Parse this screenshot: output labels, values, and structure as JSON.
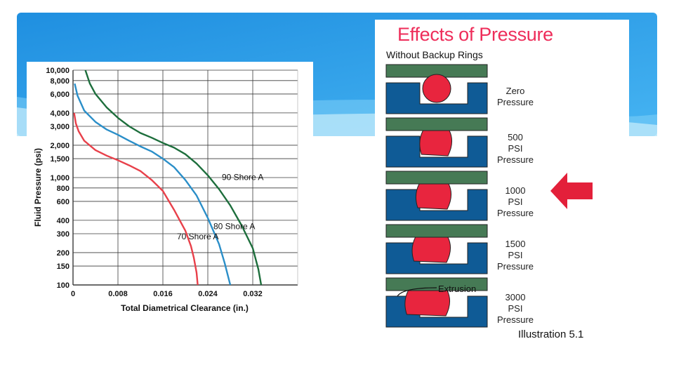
{
  "chart_data": {
    "type": "line",
    "title": "",
    "xlabel": "Total Diametrical Clearance (in.)",
    "ylabel": "Fluid Pressure (psi)",
    "x_scale": "linear",
    "y_scale": "log",
    "xlim": [
      0,
      0.04
    ],
    "ylim": [
      100,
      10000
    ],
    "x_ticks": [
      "0",
      "0.008",
      "0.016",
      "0.024",
      "0.032"
    ],
    "y_ticks": [
      "100",
      "150",
      "200",
      "300",
      "400",
      "600",
      "800",
      "1,000",
      "1,500",
      "2,000",
      "3,000",
      "4,000",
      "6,000",
      "8,000",
      "10,000"
    ],
    "y_tick_values": [
      100,
      150,
      200,
      300,
      400,
      600,
      800,
      1000,
      1500,
      2000,
      3000,
      4000,
      6000,
      8000,
      10000
    ],
    "grid": true,
    "series": [
      {
        "name": "70 Shore A",
        "color": "#e8404a",
        "x": [
          0.0002,
          0.0005,
          0.001,
          0.002,
          0.004,
          0.006,
          0.008,
          0.01,
          0.012,
          0.014,
          0.016,
          0.018,
          0.02,
          0.021,
          0.0215,
          0.022,
          0.0222
        ],
        "y": [
          4000,
          3200,
          2700,
          2200,
          1800,
          1600,
          1450,
          1300,
          1150,
          950,
          750,
          500,
          320,
          230,
          180,
          130,
          100
        ]
      },
      {
        "name": "80 Shore A",
        "color": "#2a8ec8",
        "x": [
          0.0003,
          0.0008,
          0.002,
          0.004,
          0.006,
          0.008,
          0.01,
          0.012,
          0.014,
          0.016,
          0.018,
          0.02,
          0.022,
          0.024,
          0.026,
          0.027,
          0.028
        ],
        "y": [
          7500,
          5800,
          4200,
          3300,
          2800,
          2500,
          2200,
          1950,
          1750,
          1500,
          1250,
          950,
          680,
          420,
          240,
          160,
          100
        ]
      },
      {
        "name": "90 Shore A",
        "color": "#1d6e3c",
        "x": [
          0.0022,
          0.003,
          0.004,
          0.006,
          0.008,
          0.01,
          0.012,
          0.014,
          0.016,
          0.018,
          0.02,
          0.022,
          0.024,
          0.026,
          0.028,
          0.03,
          0.032,
          0.033,
          0.0335
        ],
        "y": [
          10000,
          7500,
          6000,
          4500,
          3600,
          3000,
          2600,
          2350,
          2100,
          1900,
          1650,
          1350,
          1050,
          780,
          550,
          360,
          220,
          140,
          100
        ]
      }
    ]
  },
  "illustration": {
    "title": "Effects of Pressure",
    "subtitle": "Without Backup Rings",
    "extrusion_label": "Extrusion",
    "caption": "Illustration 5.1",
    "stages": [
      {
        "lines": [
          "Zero",
          "Pressure"
        ]
      },
      {
        "lines": [
          "500",
          "PSI",
          "Pressure"
        ]
      },
      {
        "lines": [
          "1000",
          "PSI",
          "Pressure"
        ]
      },
      {
        "lines": [
          "1500",
          "PSI",
          "Pressure"
        ]
      },
      {
        "lines": [
          "3000",
          "PSI",
          "Pressure"
        ]
      }
    ],
    "colors": {
      "plate": "#467a55",
      "gland": "#0f5b96",
      "seal": "#e8253e",
      "arrow": "#e3203a",
      "title": "#ee2d5a"
    }
  }
}
